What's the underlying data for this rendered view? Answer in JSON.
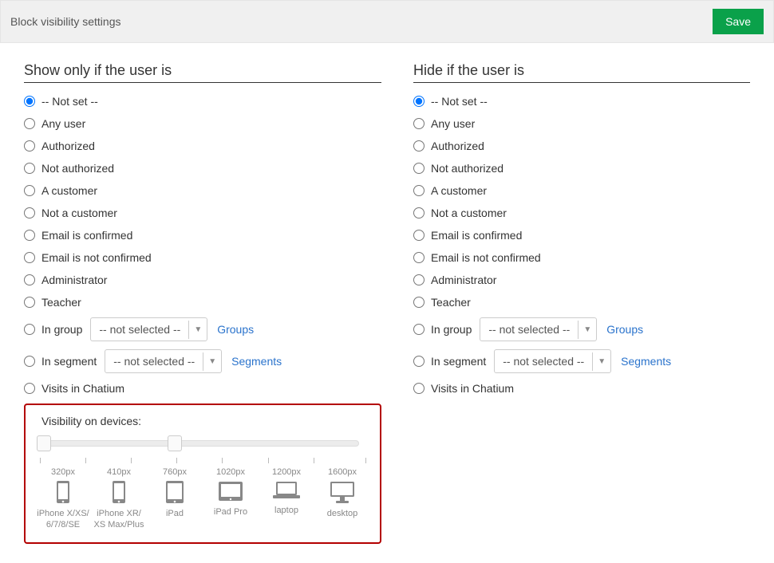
{
  "header": {
    "title": "Block visibility settings",
    "save_label": "Save"
  },
  "colors": {
    "save_bg": "#0aa14a",
    "link": "#2a73cc",
    "highlight_border": "#b30000",
    "radio_accent": "#0074ff"
  },
  "show": {
    "heading": "Show only if the user is",
    "options": [
      {
        "label": "-- Not set --",
        "checked": true
      },
      {
        "label": "Any user",
        "checked": false
      },
      {
        "label": "Authorized",
        "checked": false
      },
      {
        "label": "Not authorized",
        "checked": false
      },
      {
        "label": "A customer",
        "checked": false
      },
      {
        "label": "Not a customer",
        "checked": false
      },
      {
        "label": "Email is confirmed",
        "checked": false
      },
      {
        "label": "Email is not confirmed",
        "checked": false
      },
      {
        "label": "Administrator",
        "checked": false
      },
      {
        "label": "Teacher",
        "checked": false
      }
    ],
    "group": {
      "label": "In group",
      "select_value": "-- not selected --",
      "link_label": "Groups"
    },
    "segment": {
      "label": "In segment",
      "select_value": "-- not selected --",
      "link_label": "Segments"
    },
    "visits": {
      "label": "Visits in Chatium"
    }
  },
  "hide": {
    "heading": "Hide if the user is",
    "options": [
      {
        "label": "-- Not set --",
        "checked": true
      },
      {
        "label": "Any user",
        "checked": false
      },
      {
        "label": "Authorized",
        "checked": false
      },
      {
        "label": "Not authorized",
        "checked": false
      },
      {
        "label": "A customer",
        "checked": false
      },
      {
        "label": "Not a customer",
        "checked": false
      },
      {
        "label": "Email is confirmed",
        "checked": false
      },
      {
        "label": "Email is not confirmed",
        "checked": false
      },
      {
        "label": "Administrator",
        "checked": false
      },
      {
        "label": "Teacher",
        "checked": false
      }
    ],
    "group": {
      "label": "In group",
      "select_value": "-- not selected --",
      "link_label": "Groups"
    },
    "segment": {
      "label": "In segment",
      "select_value": "-- not selected --",
      "link_label": "Segments"
    },
    "visits": {
      "label": "Visits in Chatium"
    }
  },
  "devices": {
    "title": "Visibility on devices:",
    "slider": {
      "handle_positions_pct": [
        0,
        42
      ],
      "tick_positions_pct": [
        0,
        14,
        28,
        42,
        56,
        70,
        84,
        100
      ]
    },
    "items": [
      {
        "px": "320px",
        "name": "iPhone X/XS/6/7/8/SE",
        "icon": "phone"
      },
      {
        "px": "410px",
        "name": "iPhone XR/XS Max/Plus",
        "icon": "phone"
      },
      {
        "px": "760px",
        "name": "iPad",
        "icon": "tablet"
      },
      {
        "px": "1020px",
        "name": "iPad Pro",
        "icon": "tablet-wide"
      },
      {
        "px": "1200px",
        "name": "laptop",
        "icon": "laptop"
      },
      {
        "px": "1600px",
        "name": "desktop",
        "icon": "desktop"
      }
    ]
  }
}
